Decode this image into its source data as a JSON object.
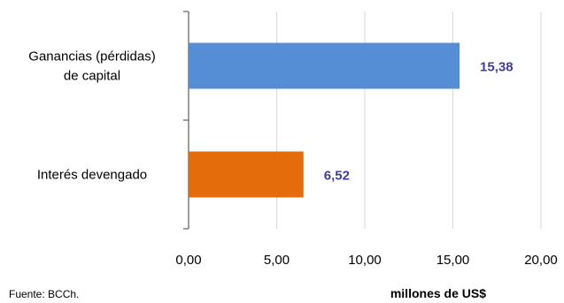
{
  "chart_data": {
    "type": "bar",
    "orientation": "horizontal",
    "categories": [
      "Ganancias (pérdidas)\nde capital",
      "Interés devengado"
    ],
    "values": [
      15.38,
      6.52
    ],
    "value_labels": [
      "15,38",
      "6,52"
    ],
    "bar_colors": [
      "#558ED5",
      "#E46C0A"
    ],
    "label_color": "#3F3F98",
    "title": "",
    "xlabel": "millones de US$",
    "ylabel": "",
    "xlim": [
      0,
      20
    ],
    "x_ticks": [
      0,
      5,
      10,
      15,
      20
    ],
    "x_tick_labels": [
      "0,00",
      "5,00",
      "10,00",
      "15,00",
      "20,00"
    ],
    "grid": "vertical",
    "grid_color": "#D9D9D9",
    "source": "Fuente: BCCh."
  }
}
